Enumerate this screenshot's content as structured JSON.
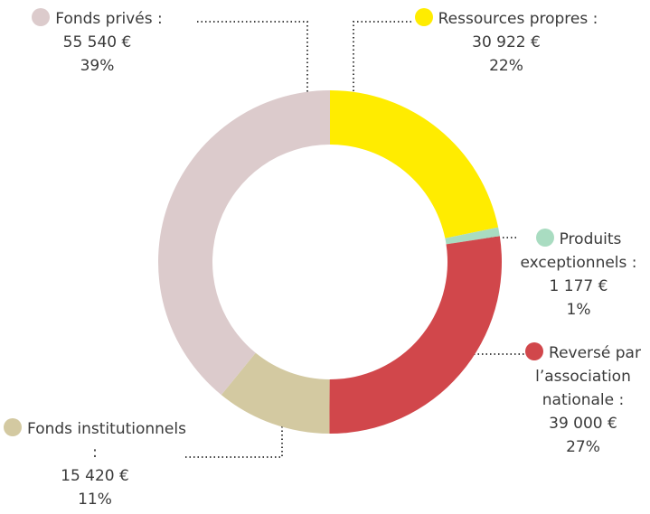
{
  "chart_data": {
    "type": "donut",
    "categories": [
      "Ressources propres :",
      "Produits exceptionnels :",
      "Reversé par l’association nationale :",
      "Fonds institutionnels :",
      "Fonds privés :"
    ],
    "values": [
      30922,
      1177,
      39000,
      15420,
      55540
    ],
    "value_labels": [
      "30 922 €",
      "1 177 €",
      "39 000 €",
      "15 420 €",
      "55 540 €"
    ],
    "percentages": [
      22,
      1,
      27,
      11,
      39
    ],
    "percentage_labels": [
      "22%",
      "1%",
      "27%",
      "11%",
      "39%"
    ],
    "colors": [
      "#ffec00",
      "#a9dcc1",
      "#d1474b",
      "#d3c9a1",
      "#dccbcc"
    ]
  }
}
